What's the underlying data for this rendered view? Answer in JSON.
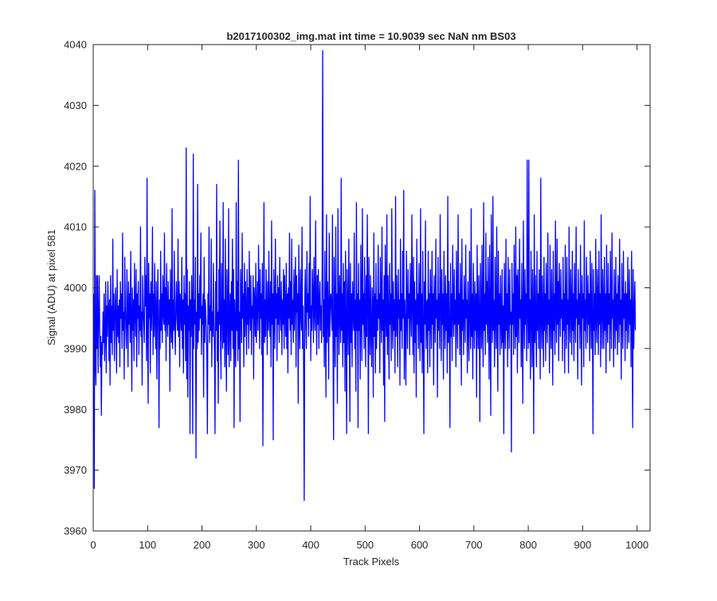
{
  "chart_data": {
    "type": "line",
    "title": "b2017100302_img.mat int time = 10.9039 sec  NaN nm BS03",
    "xlabel": "Track Pixels",
    "ylabel": "Signal (ADU) at pixel 581",
    "xlim": [
      0,
      1024
    ],
    "ylim": [
      3960,
      4040
    ],
    "xticks": [
      0,
      100,
      200,
      300,
      400,
      500,
      600,
      700,
      800,
      900,
      1000
    ],
    "yticks": [
      3960,
      3970,
      3980,
      3990,
      4000,
      4010,
      4020,
      4030,
      4040
    ],
    "grid": false,
    "series_color": "#0000ff",
    "series": [
      {
        "x_start": 1,
        "x_step": 1,
        "values": [
          3999,
          3967,
          4016,
          3988,
          3984,
          4002,
          3990,
          4002,
          3986,
          3995,
          4002,
          3993,
          3987,
          3992,
          3979,
          3991,
          3989,
          3996,
          3991,
          3999,
          3988,
          3993,
          4001,
          3986,
          3997,
          3992,
          4001,
          3996,
          3988,
          3998,
          3984,
          4002,
          3991,
          3997,
          3989,
          4008,
          3993,
          3999,
          3988,
          3995,
          4000,
          3994,
          3986,
          4003,
          3992,
          3997,
          3991,
          3998,
          3987,
          4001,
          3995,
          3999,
          3990,
          4009,
          3993,
          3996,
          3985,
          4005,
          3997,
          3993,
          3990,
          4003,
          3996,
          3987,
          4001,
          3994,
          3999,
          3991,
          4006,
          3995,
          3983,
          4000,
          3993,
          3998,
          3988,
          4004,
          3996,
          3992,
          4003,
          3987,
          3999,
          3995,
          4001,
          3989,
          3997,
          3993,
          4010,
          3992,
          3996,
          3984,
          4002,
          3997,
          3994,
          3991,
          4005,
          3997,
          4002,
          3988,
          4018,
          3993,
          3981,
          4004,
          3995,
          3999,
          3986,
          4001,
          3993,
          3997,
          4010,
          3989,
          3999,
          3992,
          4004,
          3995,
          3990,
          4001,
          3985,
          3996,
          4003,
          3993,
          3977,
          3998,
          3990,
          4006,
          3993,
          3999,
          3991,
          4002,
          3996,
          3994,
          4009,
          3993,
          4000,
          3988,
          4004,
          3996,
          3992,
          4001,
          3994,
          3998,
          3983,
          4003,
          3995,
          3991,
          4013,
          3990,
          3998,
          3993,
          4006,
          3994,
          3989,
          3997,
          4001,
          3995,
          3993,
          4008,
          3992,
          4001,
          3987,
          3999,
          3996,
          3993,
          4005,
          3990,
          3998,
          3986,
          4002,
          3994,
          3999,
          3988,
          4023,
          3985,
          4003,
          3982,
          3997,
          3993,
          4001,
          3976,
          3998,
          3992,
          4002,
          3995,
          3976,
          4022,
          3990,
          3998,
          3994,
          4005,
          3972,
          3996,
          3990,
          4017,
          3991,
          3999,
          3993,
          4002,
          3995,
          4009,
          3989,
          3997,
          3994,
          3999,
          3982,
          4005,
          3991,
          3998,
          3996,
          3993,
          3989,
          3976,
          3999,
          3994,
          4010,
          3991,
          3997,
          3993,
          4008,
          3987,
          3996,
          3992,
          4004,
          3995,
          3990,
          3976,
          4001,
          3993,
          4017,
          3988,
          3996,
          3981,
          4003,
          3994,
          4011,
          3992,
          3985,
          4004,
          3997,
          3990,
          4014,
          3991,
          3998,
          3987,
          4008,
          3993,
          3983,
          4003,
          3997,
          3989,
          4013,
          3987,
          3995,
          3999,
          3988,
          4001,
          3993,
          4008,
          3990,
          4003,
          3977,
          3998,
          3992,
          3987,
          4014,
          3993,
          4001,
          3988,
          4021,
          3990,
          3996,
          3978,
          4003,
          3998,
          3991,
          4009,
          3995,
          3999,
          3987,
          4004,
          3992,
          4001,
          3996,
          3989,
          4003,
          3994,
          4000,
          3990,
          4006,
          3996,
          3993,
          4002,
          3989,
          3997,
          3995,
          4002,
          3985,
          4000,
          3997,
          3992,
          4004,
          3991,
          3996,
          4001,
          3993,
          4007,
          3998,
          3990,
          4003,
          3995,
          3999,
          3989,
          4004,
          3974,
          3994,
          4014,
          3991,
          3998,
          3992,
          4003,
          3997,
          3989,
          4001,
          3993,
          4006,
          3995,
          3992,
          4001,
          3987,
          4011,
          3994,
          3999,
          3975,
          4003,
          3997,
          3990,
          4008,
          3995,
          3999,
          3988,
          4002,
          3994,
          4000,
          3991,
          4005,
          3996,
          3993,
          4001,
          3989,
          3998,
          3994,
          4003,
          3990,
          4002,
          3996,
          3992,
          4004,
          3990,
          3999,
          3986,
          4000,
          3995,
          4009,
          3993,
          4001,
          3989,
          4008,
          3994,
          3998,
          3991,
          4003,
          3993,
          3999,
          4005,
          3987,
          4002,
          3996,
          3999,
          3981,
          4007,
          3995,
          3990,
          4003,
          3996,
          3993,
          4010,
          3990,
          3997,
          3985,
          3965,
          3998,
          4003,
          3994,
          3990,
          4006,
          3996,
          3999,
          3992,
          4004,
          3995,
          4015,
          3988,
          3997,
          3993,
          4003,
          3999,
          3991,
          4005,
          3996,
          3993,
          4011,
          3997,
          3989,
          4002,
          3994,
          4003,
          3990,
          3998,
          4001,
          3993,
          3997,
          3991,
          4004,
          4039,
          3992,
          3998,
          3987,
          4006,
          3995,
          3982,
          4012,
          3991,
          4001,
          3996,
          3985,
          4009,
          3992,
          3998,
          3999,
          3996,
          3993,
          4012,
          3990,
          3975,
          4005,
          3996,
          3987,
          4010,
          3992,
          3999,
          3981,
          4013,
          3997,
          3989,
          4002,
          3995,
          3991,
          4018,
          3993,
          3999,
          3987,
          4004,
          3991,
          4001,
          3983,
          4006,
          3994,
          3976,
          4003,
          3996,
          3989,
          4008,
          3996,
          3978,
          4004,
          3991,
          3999,
          3987,
          4001,
          3996,
          3993,
          4009,
          3990,
          3998,
          3983,
          4014,
          3993,
          3999,
          3977,
          4004,
          3993,
          3998,
          3985,
          4007,
          3998,
          3988,
          4013,
          3994,
          3999,
          3990,
          4005,
          3996,
          3987,
          4002,
          3992,
          4012,
          3998,
          3976,
          4005,
          3996,
          3989,
          4002,
          3993,
          3987,
          4000,
          3997,
          3982,
          4009,
          3992,
          3999,
          3986,
          4004,
          3990,
          3998,
          3993,
          4007,
          3995,
          3999,
          3986,
          4005,
          3997,
          3991,
          4010,
          3993,
          3998,
          3984,
          4002,
          3978,
          4007,
          3996,
          3992,
          4012,
          3989,
          4002,
          3995,
          3985,
          4004,
          3994,
          3999,
          3988,
          4013,
          3996,
          3990,
          4001,
          3993,
          3998,
          3986,
          4015,
          3992,
          4002,
          3996,
          3987,
          4003,
          3995,
          3998,
          3984,
          4008,
          3993,
          3999,
          3990,
          4006,
          3995,
          4016,
          3985,
          3998,
          3993,
          3984,
          4006,
          3996,
          3990,
          4003,
          3995,
          3999,
          3989,
          4004,
          3997,
          3992,
          4012,
          3997,
          3989,
          4005,
          3986,
          4001,
          3991,
          3998,
          3982,
          4008,
          3994,
          3999,
          3990,
          4004,
          3996,
          3988,
          4013,
          3991,
          3999,
          3986,
          4006,
          3993,
          3976,
          4001,
          3994,
          4011,
          3990,
          3997,
          3998,
          3986,
          4006,
          3993,
          3999,
          3987,
          4003,
          3996,
          3990,
          4006,
          3994,
          3999,
          3984,
          4002,
          3997,
          3991,
          4008,
          3995,
          3998,
          3982,
          4005,
          3993,
          3999,
          3990,
          4012,
          3997,
          3988,
          4003,
          3994,
          3999,
          3985,
          4006,
          3996,
          3990,
          4002,
          3993,
          3999,
          3986,
          4015,
          3991,
          4001,
          3994,
          3977,
          4004,
          3992,
          3999,
          3988,
          4007,
          3996,
          3992,
          4003,
          3994,
          3998,
          3987,
          4006,
          3996,
          3990,
          4012,
          3994,
          3999,
          3989,
          4004,
          3996,
          3984,
          4008,
          3993,
          3998,
          3989,
          4002,
          3996,
          3991,
          4007,
          3995,
          3998,
          3986,
          4001,
          3994,
          3988,
          4006,
          3996,
          3990,
          4013,
          3992,
          3999,
          3985,
          4004,
          3996,
          3990,
          4001,
          3993,
          3999,
          3982,
          4007,
          3995,
          3990,
          4002,
          3996,
          3978,
          4004,
          3997,
          3990,
          4007,
          3995,
          3987,
          4014,
          3993,
          3999,
          3989,
          4009,
          3994,
          4001,
          3991,
          4005,
          3997,
          3985,
          4007,
          3996,
          3979,
          4012,
          3996,
          3991,
          4015,
          3993,
          3998,
          3987,
          4005,
          3995,
          3990,
          4010,
          3996,
          3983,
          4006,
          3994,
          3999,
          3989,
          4002,
          3995,
          3990,
          4003,
          3991,
          3997,
          3976,
          4004,
          3995,
          3990,
          4008,
          3993,
          3999,
          3987,
          4005,
          3996,
          3990,
          4003,
          3994,
          3996,
          3973,
          4004,
          3994,
          3999,
          3989,
          4007,
          3996,
          3990,
          4010,
          3992,
          4002,
          3986,
          4003,
          3997,
          3991,
          4008,
          3995,
          3998,
          3987,
          4004,
          3994,
          3981,
          4011,
          3996,
          3990,
          4003,
          3994,
          3999,
          3988,
          4021,
          3996,
          3990,
          4021,
          3991,
          3998,
          3985,
          4006,
          3997,
          3987,
          4003,
          3996,
          3976,
          4012,
          3991,
          4002,
          3994,
          3987,
          4006,
          3993,
          3999,
          3990,
          4003,
          3997,
          3985,
          4018,
          3995,
          3990,
          4002,
          3996,
          3987,
          4005,
          3993,
          3999,
          3988,
          4004,
          3996,
          3991,
          4009,
          3994,
          3998,
          3986,
          4007,
          3995,
          3990,
          4003,
          3996,
          3984,
          4006,
          3993,
          3999,
          3989,
          4011,
          3996,
          3991,
          4008,
          3994,
          4001,
          3988,
          4004,
          3997,
          3992,
          4003,
          3995,
          3998,
          3988,
          4005,
          3993,
          3999,
          3986,
          4007,
          3996,
          3990,
          4005,
          3994,
          3998,
          3986,
          4010,
          3995,
          3991,
          4003,
          3997,
          3989,
          4006,
          3993,
          3999,
          3988,
          4004,
          3996,
          3991,
          4010,
          3995,
          3998,
          3985,
          4003,
          3994,
          3999,
          3990,
          4007,
          3996,
          3984,
          4002,
          3995,
          3999,
          3987,
          4011,
          3993,
          3998,
          3990,
          4005,
          3997,
          3991,
          4002,
          3994,
          3999,
          3988,
          4006,
          3996,
          3990,
          4004,
          3995,
          3976,
          4003,
          3993,
          3999,
          3989,
          4008,
          3995,
          3991,
          4003,
          3997,
          3989,
          4006,
          3994,
          3999,
          3987,
          4012,
          3996,
          3990,
          4003,
          3997,
          3990,
          4005,
          3993,
          3999,
          3986,
          4007,
          3995,
          3991,
          4004,
          3994,
          3999,
          3988,
          4006,
          3996,
          3990,
          4009,
          3995,
          3998,
          3987,
          4003,
          3996,
          3990,
          4005,
          3993,
          3999,
          3989,
          4002,
          3997,
          3991,
          4008,
          3994,
          3998,
          3985,
          4004,
          3996,
          3990,
          4006,
          3995,
          3999,
          3988,
          4001,
          3993,
          3999,
          3990,
          4005,
          3996,
          3991,
          4003,
          3994,
          3998,
          3987,
          4006,
          3995,
          3977,
          4003,
          3990,
          3996,
          4001,
          3993
        ]
      }
    ]
  }
}
